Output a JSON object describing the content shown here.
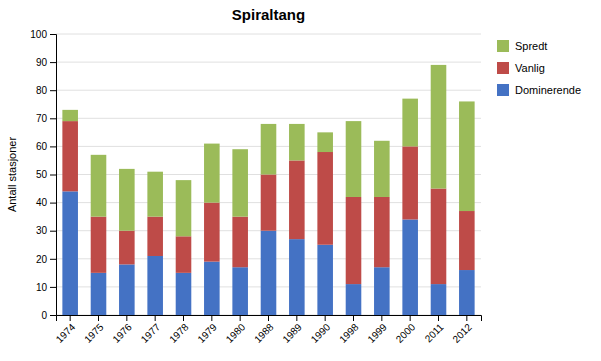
{
  "chart_data": {
    "type": "bar",
    "title": "Spiraltang",
    "ylabel": "Antall stasjoner",
    "categories": [
      "1974",
      "1975",
      "1976",
      "1977",
      "1978",
      "1979",
      "1980",
      "1988",
      "1989",
      "1990",
      "1998",
      "1999",
      "2000",
      "2011",
      "2012"
    ],
    "series": [
      {
        "name": "Dominerende",
        "color": "#4472C4",
        "values": [
          44,
          15,
          18,
          21,
          15,
          19,
          17,
          30,
          27,
          25,
          11,
          17,
          34,
          11,
          16
        ]
      },
      {
        "name": "Vanlig",
        "color": "#BE4B48",
        "values": [
          25,
          20,
          12,
          14,
          13,
          21,
          18,
          20,
          28,
          33,
          31,
          25,
          26,
          34,
          21
        ]
      },
      {
        "name": "Spredt",
        "color": "#9BBB59",
        "values": [
          4,
          22,
          22,
          16,
          20,
          21,
          24,
          18,
          13,
          7,
          27,
          20,
          17,
          44,
          39
        ]
      }
    ],
    "ylim": [
      0,
      100
    ],
    "yticks": [
      0,
      10,
      20,
      30,
      40,
      50,
      60,
      70,
      80,
      90,
      100
    ],
    "stacked": true,
    "grid": true,
    "legend": "right"
  }
}
